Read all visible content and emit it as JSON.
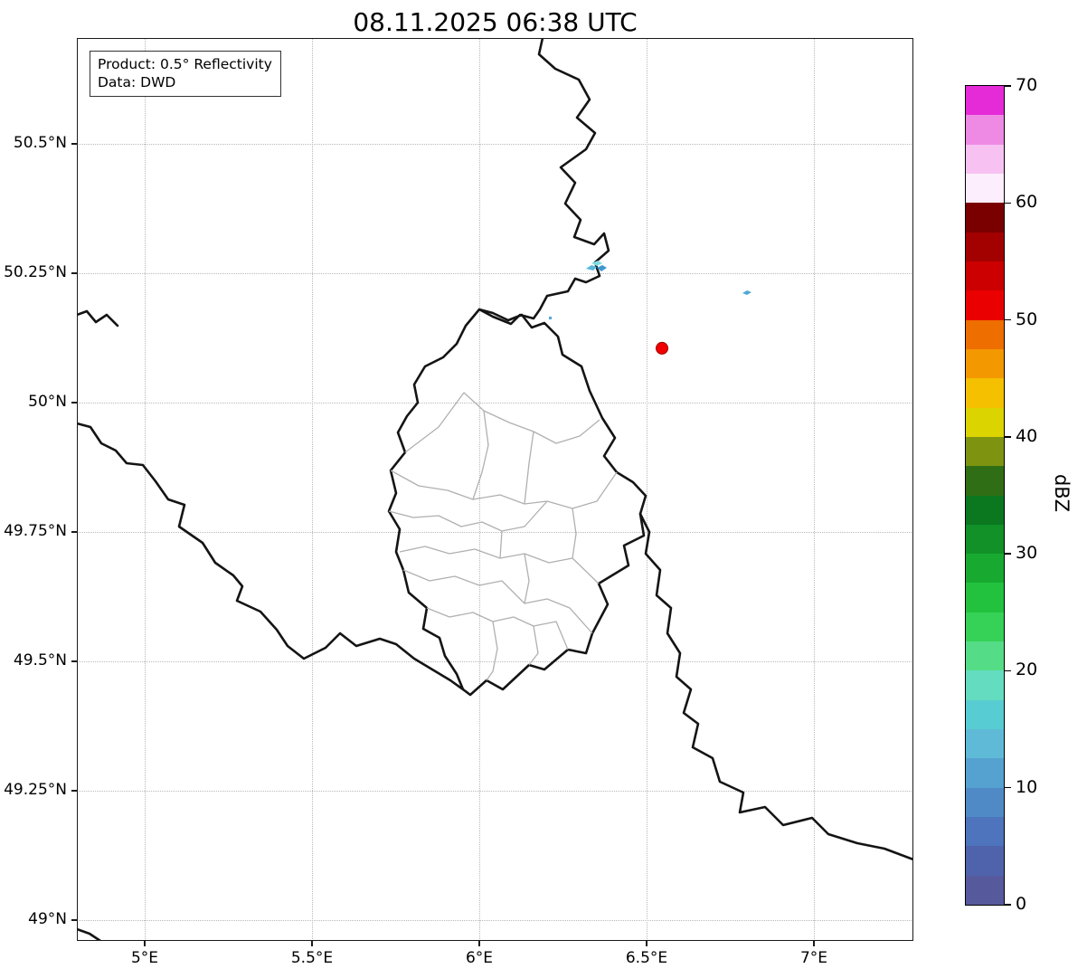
{
  "title": "08.11.2025 06:38 UTC",
  "info_box": {
    "product": "Product: 0.5° Reflectivity",
    "data_source": "Data: DWD"
  },
  "x_axis": {
    "ticks": [
      {
        "label": "5°E",
        "lon": 5.0
      },
      {
        "label": "5.5°E",
        "lon": 5.5
      },
      {
        "label": "6°E",
        "lon": 6.0
      },
      {
        "label": "6.5°E",
        "lon": 6.5
      },
      {
        "label": "7°E",
        "lon": 7.0
      }
    ]
  },
  "y_axis": {
    "ticks": [
      {
        "label": "49°N",
        "lat": 49.0
      },
      {
        "label": "49.25°N",
        "lat": 49.25
      },
      {
        "label": "49.5°N",
        "lat": 49.5
      },
      {
        "label": "49.75°N",
        "lat": 49.75
      },
      {
        "label": "50°N",
        "lat": 50.0
      },
      {
        "label": "50.25°N",
        "lat": 50.25
      },
      {
        "label": "50.5°N",
        "lat": 50.5
      }
    ]
  },
  "colorbar": {
    "label": "dBZ",
    "min": 0,
    "max": 70,
    "step": 2.5,
    "tick_values": [
      0,
      10,
      20,
      30,
      40,
      50,
      60,
      70
    ],
    "colors": [
      "#565a9c",
      "#4f63ad",
      "#4d74bc",
      "#4f8ac6",
      "#55a2d0",
      "#5fbad8",
      "#57ccd2",
      "#63dcc0",
      "#55dc86",
      "#36d257",
      "#22c23e",
      "#18aa30",
      "#119128",
      "#0b7820",
      "#2f6e14",
      "#7e9410",
      "#dcd400",
      "#f4c000",
      "#f49800",
      "#ee6e00",
      "#ea0000",
      "#cc0000",
      "#a30000",
      "#7a0000",
      "#fceefc",
      "#f7c2f2",
      "#ef8ae4",
      "#e52ad8"
    ]
  },
  "radar_site": {
    "marker_color": "#f00000",
    "edge_color": "#a00000",
    "lon": 6.546,
    "lat": 50.105
  },
  "echoes": [
    {
      "lon": 6.35,
      "lat": 50.26,
      "dbz_range": "5-20"
    },
    {
      "lon": 6.8,
      "lat": 50.21,
      "dbz_range": "5-10"
    },
    {
      "lon": 6.21,
      "lat": 50.17,
      "dbz_range": "5-10"
    }
  ],
  "map": {
    "national_border_color": "#141414",
    "admin_border_color": "#b0b0b0",
    "grid_color": "#b9b9b9"
  }
}
